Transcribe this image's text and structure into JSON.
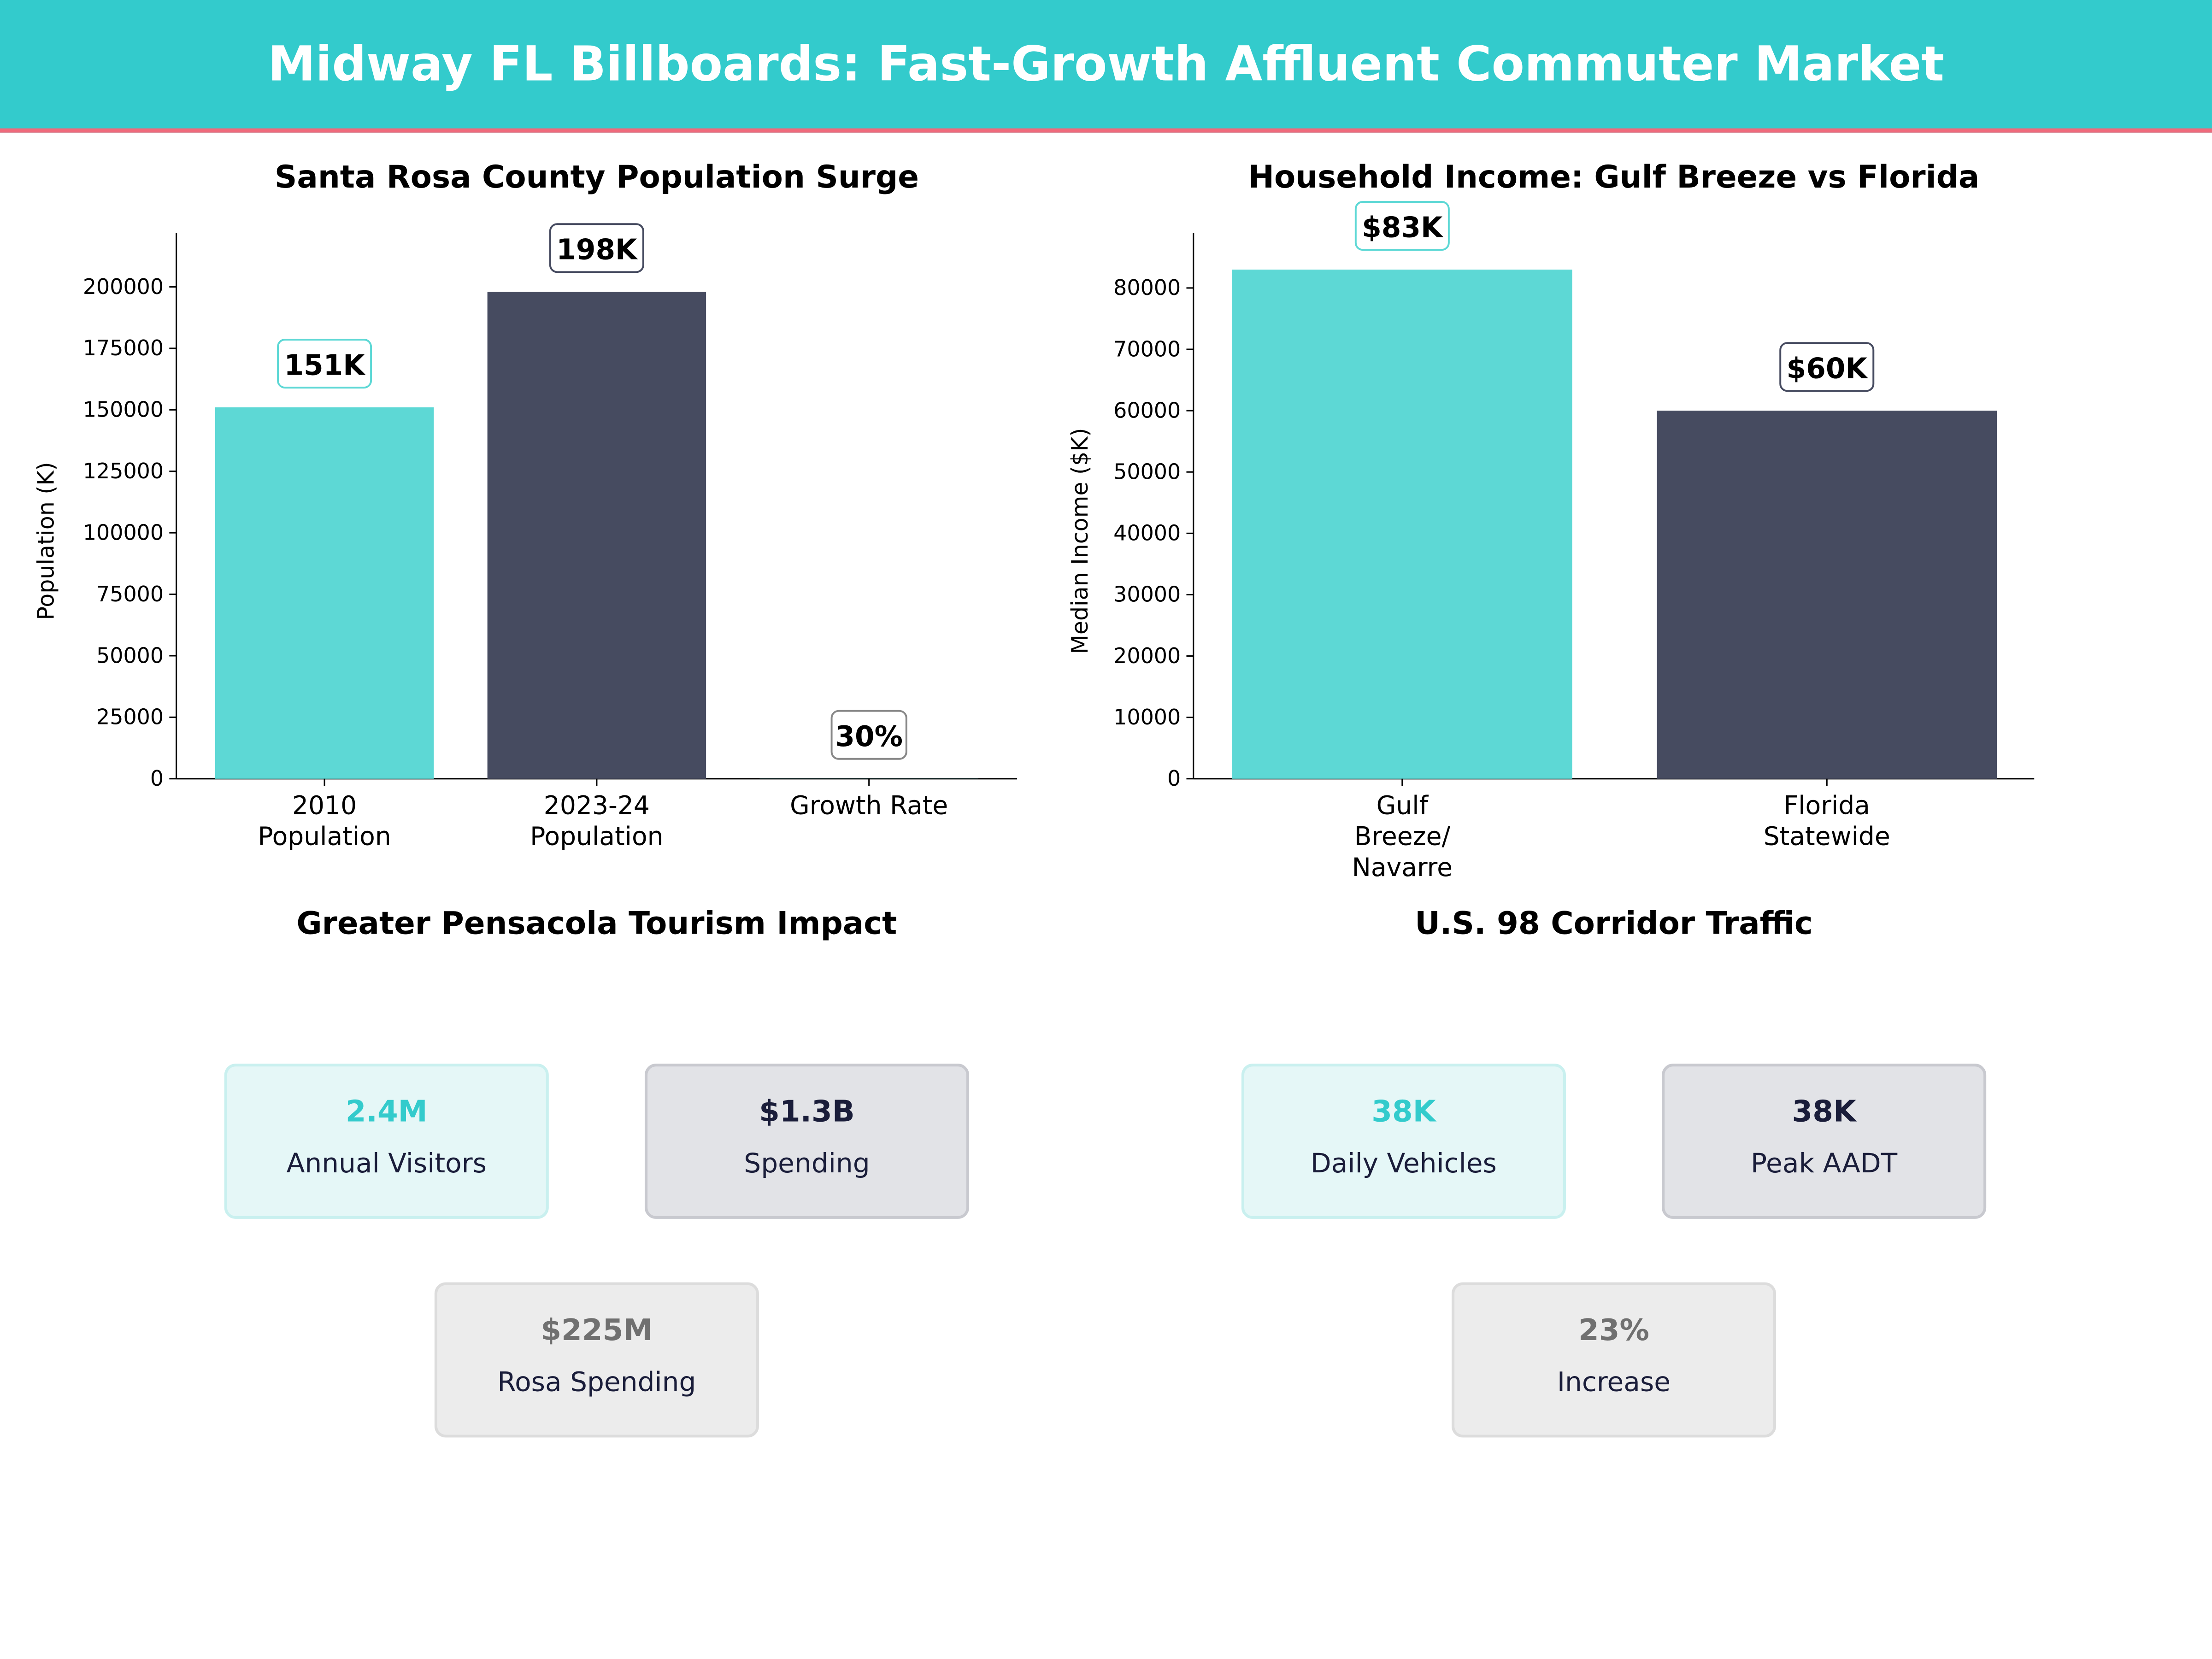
{
  "header": {
    "title": "Midway FL Billboards: Fast-Growth Affluent Commuter Market"
  },
  "colors": {
    "teal": "#5dd8d5",
    "navy": "#464b60",
    "header_bg": "#33cbcc",
    "accent_line": "#ef6a7b"
  },
  "chart_data": [
    {
      "type": "bar",
      "title": "Santa Rosa County Population Surge",
      "xlabel": "",
      "ylabel": "Population (K)",
      "categories": [
        "2010\nPopulation",
        "2023-24\nPopulation",
        "Growth Rate"
      ],
      "values": [
        151000,
        198000,
        30
      ],
      "data_labels": [
        "151K",
        "198K",
        "30%"
      ],
      "ylim": [
        0,
        222000
      ],
      "yticks": [
        0,
        25000,
        50000,
        75000,
        100000,
        125000,
        150000,
        175000,
        200000
      ],
      "bar_colors": [
        "#5dd8d5",
        "#464b60",
        "#5dd8d5"
      ],
      "grid": false
    },
    {
      "type": "bar",
      "title": "Household Income: Gulf Breeze vs Florida",
      "xlabel": "",
      "ylabel": "Median Income ($K)",
      "categories": [
        "Gulf\nBreeze/\nNavarre",
        "Florida\nStatewide"
      ],
      "values": [
        83000,
        60000
      ],
      "data_labels": [
        "$83K",
        "$60K"
      ],
      "ylim": [
        0,
        89000
      ],
      "yticks": [
        0,
        10000,
        20000,
        30000,
        40000,
        50000,
        60000,
        70000,
        80000
      ],
      "bar_colors": [
        "#5dd8d5",
        "#464b60"
      ],
      "grid": false
    }
  ],
  "tourism": {
    "title": "Greater Pensacola Tourism Impact",
    "cards": [
      {
        "value": "2.4M",
        "label": "Annual Visitors"
      },
      {
        "value": "$1.3B",
        "label": "Spending"
      },
      {
        "value": "$225M",
        "label": "Rosa Spending"
      }
    ]
  },
  "traffic": {
    "title": "U.S. 98 Corridor Traffic",
    "cards": [
      {
        "value": "38K",
        "label": "Daily Vehicles"
      },
      {
        "value": "38K",
        "label": "Peak AADT"
      },
      {
        "value": "23%",
        "label": "Increase"
      }
    ]
  }
}
